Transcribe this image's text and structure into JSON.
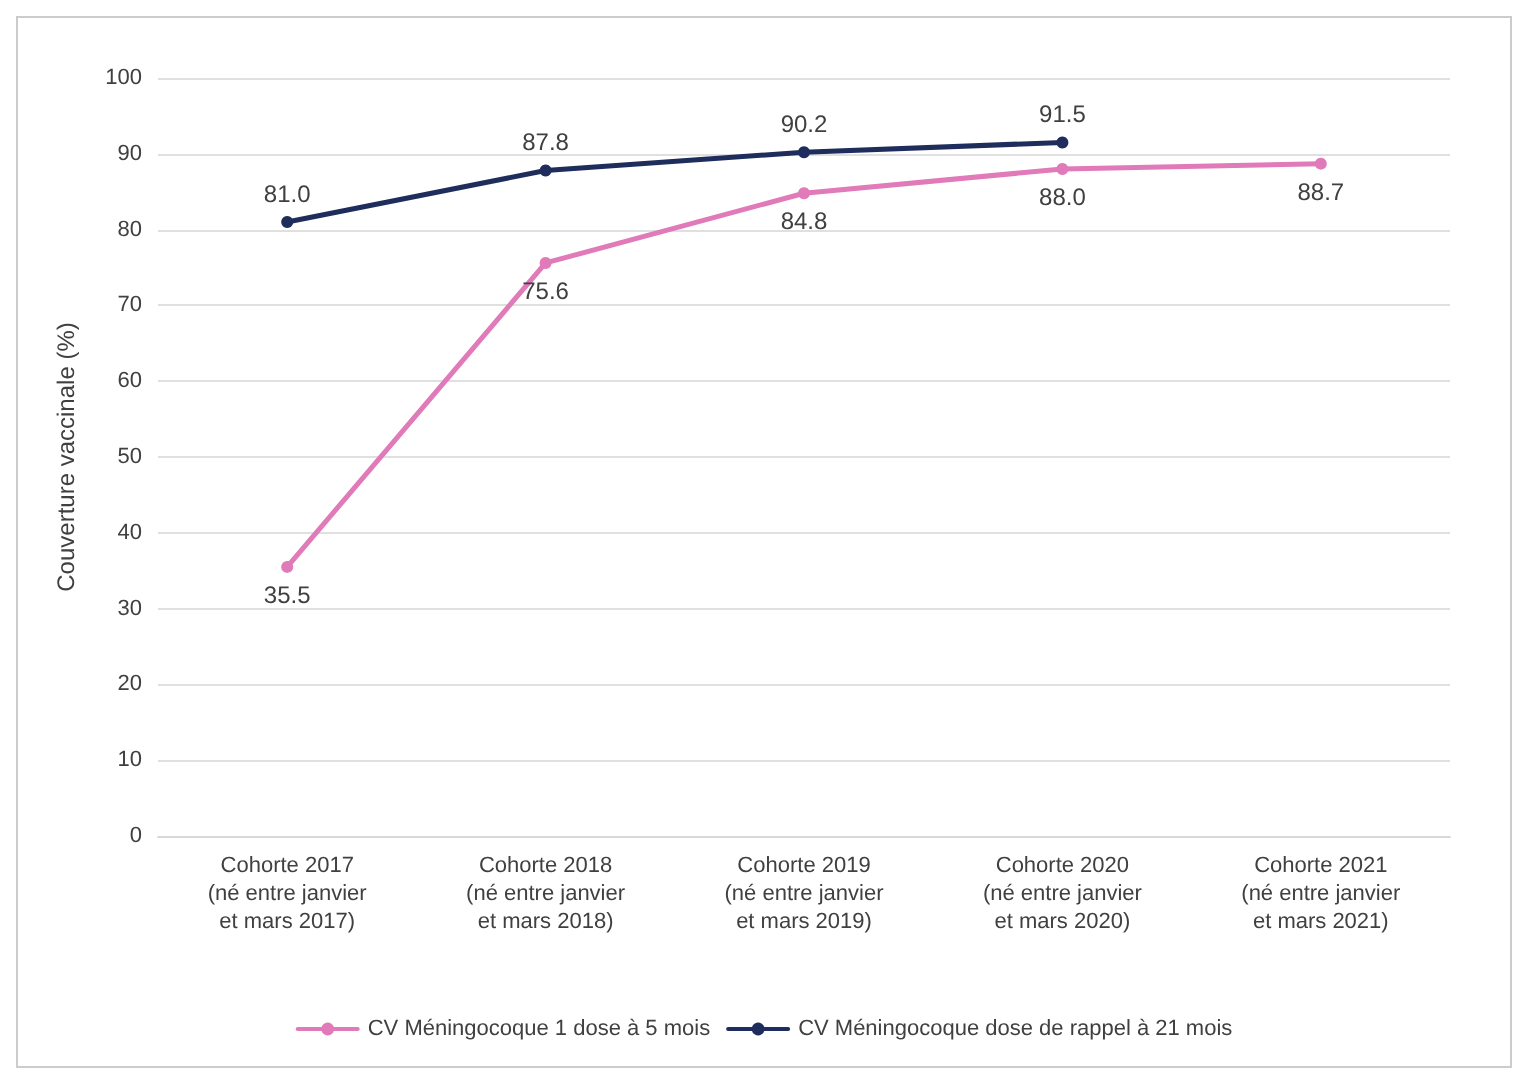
{
  "chart_data": {
    "type": "line",
    "ylabel": "Couverture vaccinale (%)",
    "categories": [
      "Cohorte 2017 (né entre janvier et mars 2017)",
      "Cohorte 2018 (né entre janvier et mars 2018)",
      "Cohorte 2019 (né entre janvier et mars 2019)",
      "Cohorte 2020 (né entre janvier et mars 2020)",
      "Cohorte 2021 (né entre janvier et mars 2021)"
    ],
    "series": [
      {
        "name": "CV Méningocoque 1 dose à 5 mois",
        "color": "#e07ab8",
        "values": [
          35.5,
          75.6,
          84.8,
          88,
          88.7
        ],
        "value_labels": [
          "35.5",
          "75.6",
          "84.8",
          "88.0",
          "88.7"
        ]
      },
      {
        "name": "CV Méningocoque dose de rappel à 21 mois",
        "color": "#1f2d5c",
        "values": [
          81,
          87.8,
          90.2,
          91.5,
          null
        ],
        "value_labels": [
          "81.0",
          "87.8",
          "90.2",
          "91.5",
          null
        ]
      }
    ],
    "ylim": [
      0,
      100
    ],
    "yticks": [
      0,
      10,
      20,
      30,
      40,
      50,
      60,
      70,
      80,
      90,
      100
    ],
    "grid": "y",
    "legend": "bottom",
    "marker": "circle",
    "line_style": "solid"
  }
}
